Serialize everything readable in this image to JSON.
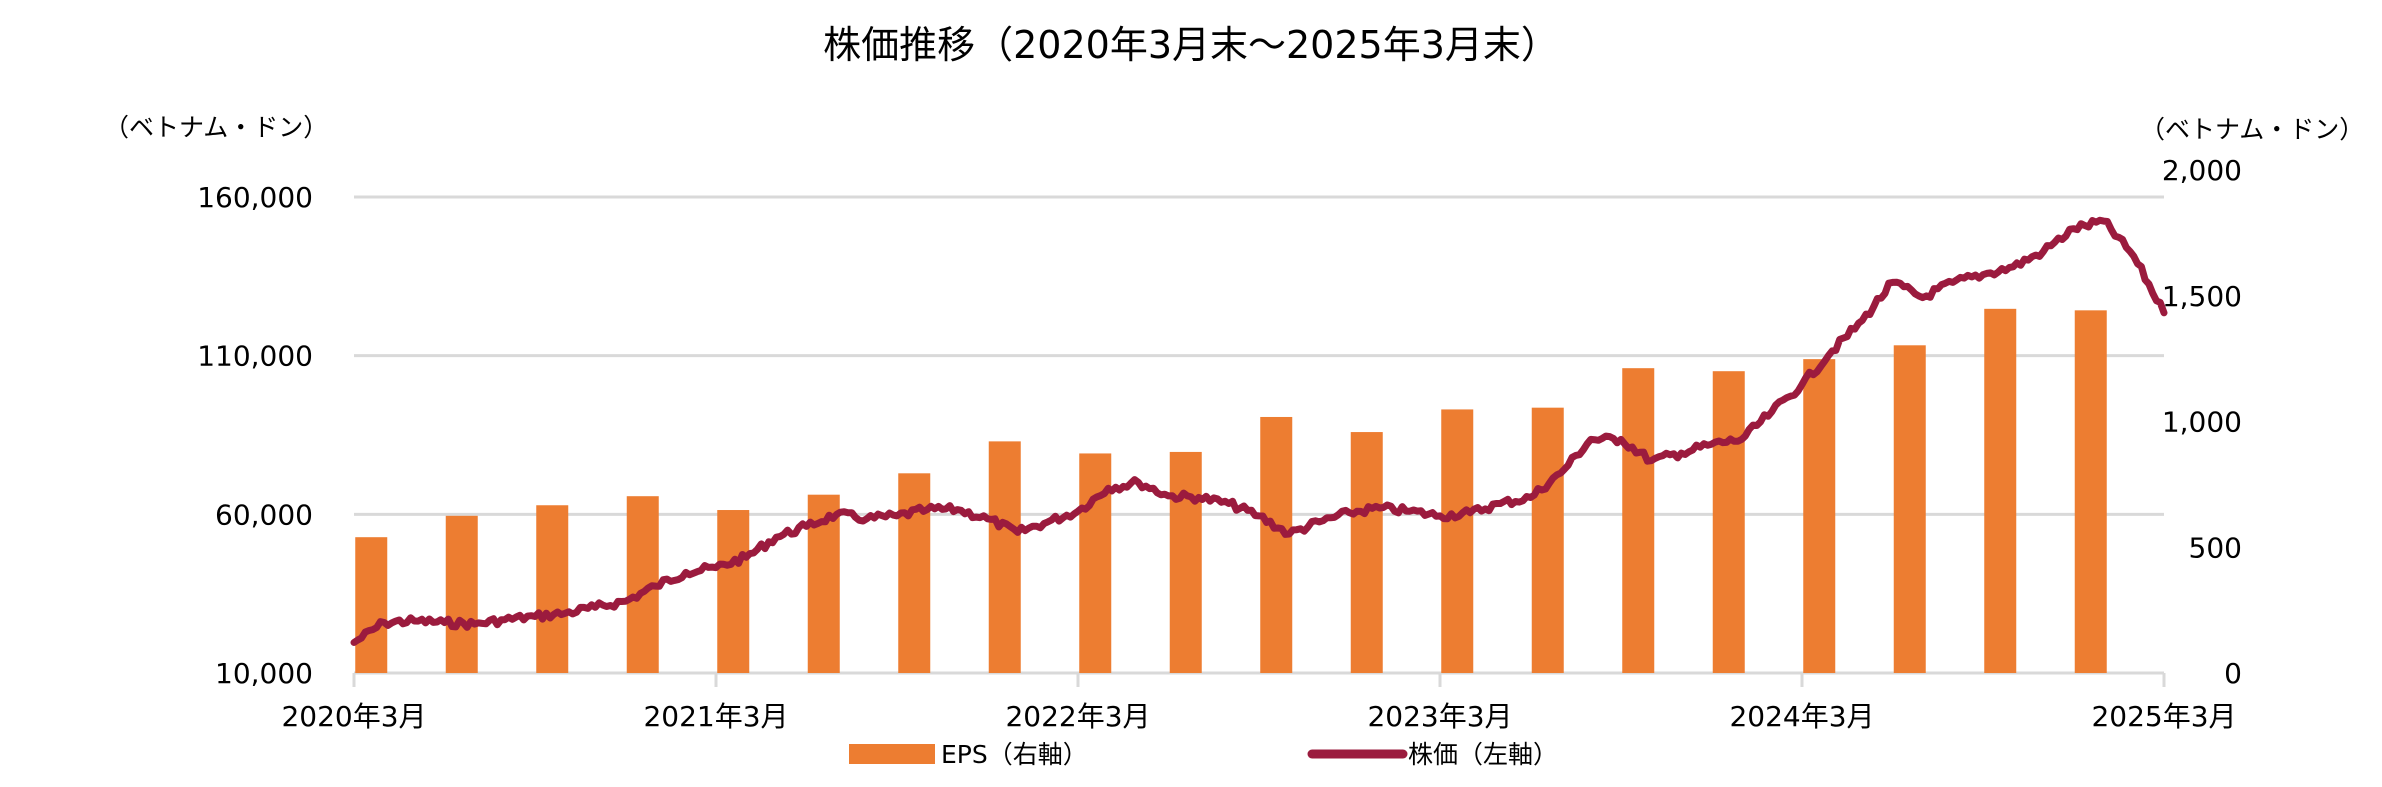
{
  "chart_data": {
    "type": "bar+line",
    "title": "株価推移（2020年3月末～2025年3月末）",
    "left_axis": {
      "unit_label": "（ベトナム・ドン）",
      "range": [
        10000,
        160000
      ],
      "ticks": [
        10000,
        60000,
        110000,
        160000
      ],
      "tick_labels": [
        "10,000",
        "60,000",
        "110,000",
        "160,000"
      ]
    },
    "right_axis": {
      "unit_label": "（ベトナム・ドン）",
      "range": [
        0,
        2000
      ],
      "ticks": [
        0,
        500,
        1000,
        1500,
        2000
      ],
      "tick_labels": [
        "0",
        "500",
        "1,000",
        "1,500",
        "2,000"
      ]
    },
    "x_axis": {
      "range": [
        "2020-03",
        "2025-03"
      ],
      "tick_labels": [
        "2020年3月",
        "2021年3月",
        "2022年3月",
        "2023年3月",
        "2024年3月",
        "2025年3月"
      ]
    },
    "grid": true,
    "legend_placement": "bottom",
    "series": [
      {
        "name": "EPS（右軸）",
        "kind": "bar",
        "axis": "right",
        "color": "#ED7D31",
        "categories": [
          "2020Q1",
          "2020Q2",
          "2020Q3",
          "2020Q4",
          "2021Q1",
          "2021Q2",
          "2021Q3",
          "2021Q4",
          "2022Q1",
          "2022Q2",
          "2022Q3",
          "2022Q4",
          "2023Q1",
          "2023Q2",
          "2023Q3",
          "2023Q4",
          "2024Q1",
          "2024Q2",
          "2024Q3",
          "2024Q4"
        ],
        "values": [
          540,
          625,
          667,
          703,
          648,
          709,
          794,
          921,
          873,
          879,
          1018,
          958,
          1048,
          1055,
          1212,
          1200,
          1248,
          1303,
          1448,
          1442
        ]
      },
      {
        "name": "株価（左軸）",
        "kind": "line",
        "axis": "left",
        "color": "#9B1B3E",
        "x": [
          "2020-03",
          "2020-04",
          "2020-05",
          "2020-06",
          "2020-07",
          "2020-08",
          "2020-09",
          "2020-10",
          "2020-11",
          "2020-12",
          "2021-01",
          "2021-02",
          "2021-03",
          "2021-04",
          "2021-05",
          "2021-06",
          "2021-07",
          "2021-08",
          "2021-09",
          "2021-10",
          "2021-11",
          "2021-12",
          "2022-01",
          "2022-02",
          "2022-03",
          "2022-04",
          "2022-05",
          "2022-06",
          "2022-07",
          "2022-08",
          "2022-09",
          "2022-10",
          "2022-11",
          "2022-12",
          "2023-01",
          "2023-02",
          "2023-03",
          "2023-04",
          "2023-05",
          "2023-06",
          "2023-07",
          "2023-08",
          "2023-09",
          "2023-10",
          "2023-11",
          "2023-12",
          "2024-01",
          "2024-02",
          "2024-03",
          "2024-04",
          "2024-05",
          "2024-06",
          "2024-07",
          "2024-08",
          "2024-09",
          "2024-10",
          "2024-11",
          "2024-12",
          "2025-01",
          "2025-02",
          "2025-03"
        ],
        "values": [
          19600,
          25900,
          26400,
          25900,
          25400,
          26800,
          27800,
          28800,
          30700,
          32600,
          37400,
          41700,
          43200,
          46500,
          52800,
          56200,
          60000,
          58600,
          59500,
          61500,
          61500,
          58600,
          54300,
          57600,
          61000,
          68200,
          70100,
          65800,
          65300,
          63400,
          59500,
          53800,
          57600,
          60500,
          62000,
          61000,
          59500,
          60500,
          63400,
          65300,
          73000,
          83600,
          83600,
          76900,
          79300,
          82100,
          83600,
          92300,
          100900,
          111500,
          121100,
          133100,
          128300,
          133100,
          135500,
          138000,
          142800,
          150000,
          152400,
          141300,
          123500
        ]
      }
    ]
  }
}
